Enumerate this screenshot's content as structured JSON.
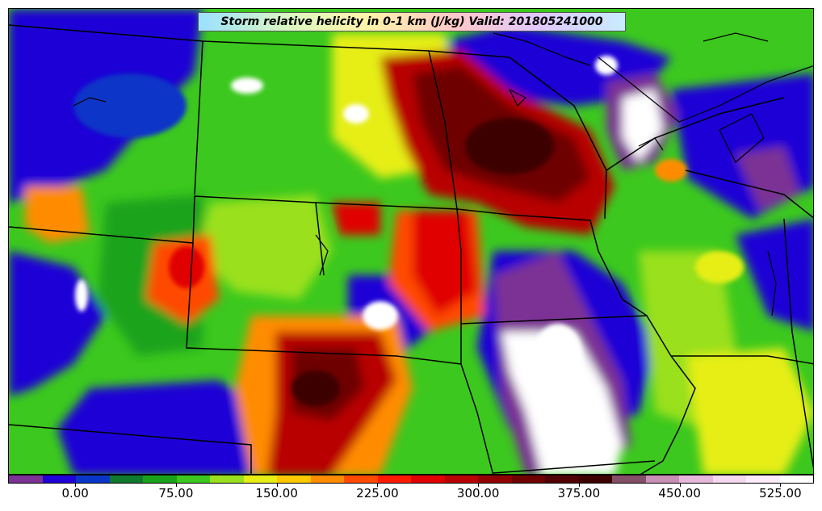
{
  "title": "Storm relative helicity in 0-1 km (J/kg) Valid: 201805241000",
  "colorbar": {
    "colors": [
      "#7b3294",
      "#1f00d6",
      "#0a36c8",
      "#0f7a2e",
      "#1aa31a",
      "#3cc81e",
      "#9ae01e",
      "#e6ee14",
      "#ffc800",
      "#ff8c00",
      "#ff4a00",
      "#ff1a00",
      "#e00000",
      "#b80000",
      "#900000",
      "#6e0000",
      "#500000",
      "#3c0000",
      "#845068",
      "#c890b4",
      "#e8b8dc",
      "#f5d8f0",
      "#fcecfa",
      "#ffffff"
    ],
    "tick_values": [
      0,
      75,
      150,
      225,
      300,
      375,
      450,
      525
    ],
    "tick_labels": [
      "0.00",
      "75.00",
      "150.00",
      "225.00",
      "300.00",
      "375.00",
      "450.00",
      "525.00"
    ],
    "vmin": -50,
    "vmax": 550
  },
  "map": {
    "field": "Storm relative helicity 0-1 km",
    "units": "J/kg",
    "valid": "201805241000",
    "overlays": [
      "state-boundaries",
      "coastlines",
      "lakes"
    ]
  }
}
